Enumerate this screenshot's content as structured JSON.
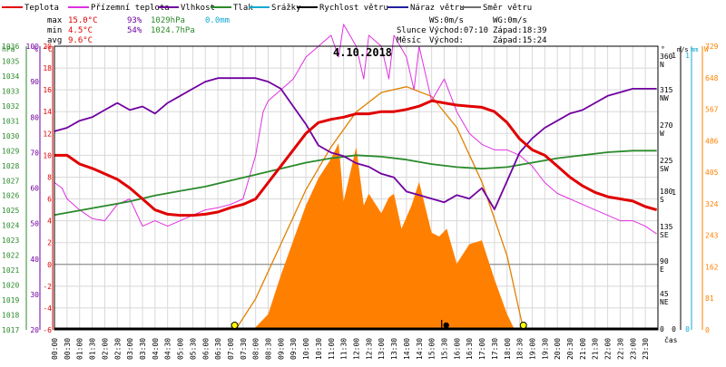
{
  "legend": [
    {
      "label": "Teplota",
      "color": "#e00000"
    },
    {
      "label": "Přízemní teplota",
      "color": "#e030e0"
    },
    {
      "label": "Vlhkost",
      "color": "#7000a0"
    },
    {
      "label": "Tlak",
      "color": "#2a8a2a"
    },
    {
      "label": "Srážky",
      "color": "#10a8d0"
    },
    {
      "label": "Rychlost větru",
      "color": "#000000"
    },
    {
      "label": "Náraz větru",
      "color": "#2020a0"
    },
    {
      "label": "Směr větru",
      "color": "#707070"
    }
  ],
  "stats": {
    "max": {
      "label": "max",
      "temp": "15.0°C",
      "hum": "93%",
      "press": "1029hPa",
      "rain": "0.0mm"
    },
    "min": {
      "label": "min",
      "temp": "4.5°C",
      "hum": "54%",
      "press": "1024.7hPa"
    },
    "avg": {
      "label": "avg",
      "temp": "9.6°C"
    }
  },
  "wind_info": {
    "ws": "WS:0m/s",
    "wg": "WG:0m/s"
  },
  "sun": {
    "label": "Slunce",
    "rise_label": "Východ:",
    "rise": "07:10",
    "set_label": "Západ:",
    "set": "18:39"
  },
  "moon": {
    "label": "Měsíc",
    "rise_label": "Východ:",
    "rise": "",
    "set_label": "Západ:",
    "set": "15:24"
  },
  "date_title": "4.10.2018",
  "x_axis_label": "čas",
  "axis_headers": {
    "hpa": "hPa",
    "pct": "%",
    "degc": "°C",
    "deg": "°",
    "ms": "m/s",
    "mm": "mm",
    "w": "W"
  },
  "colors": {
    "temp": "#e00000",
    "ground": "#e030e0",
    "humidity": "#7000a0",
    "pressure": "#2a8a2a",
    "rain": "#10a8d0",
    "gust": "#2020a0",
    "radiation": "#ff8000",
    "radiation_curve": "#e08000",
    "grid": "#d8d8d8",
    "zero_line": "#808080",
    "marker": "#ffff00"
  },
  "chart_data": {
    "type": "line",
    "title": "4.10.2018",
    "x_ticks": [
      "00:00",
      "00:30",
      "01:00",
      "01:30",
      "02:00",
      "02:30",
      "03:00",
      "03:30",
      "04:00",
      "04:30",
      "05:00",
      "05:30",
      "06:00",
      "06:30",
      "07:00",
      "07:30",
      "08:00",
      "08:30",
      "09:00",
      "09:30",
      "10:00",
      "10:30",
      "11:00",
      "11:30",
      "12:00",
      "12:30",
      "13:00",
      "13:30",
      "14:00",
      "14:30",
      "15:00",
      "15:30",
      "16:00",
      "16:30",
      "17:00",
      "17:30",
      "18:00",
      "18:30",
      "19:00",
      "19:30",
      "20:00",
      "20:30",
      "21:00",
      "21:30",
      "22:00",
      "22:30",
      "23:00",
      "23:30"
    ],
    "axes": {
      "pressure_hpa": {
        "min": 1017,
        "max": 1036,
        "ticks": [
          "1036",
          "1035",
          "1034",
          "1033",
          "1032",
          "1031",
          "1030",
          "1029",
          "1028",
          "1027",
          "1026",
          "1025",
          "1024",
          "1023",
          "1022",
          "1021",
          "1020",
          "1019",
          "1018",
          "1017"
        ]
      },
      "humidity_pct": {
        "min": 20,
        "max": 100,
        "ticks": [
          "100",
          "90",
          "80",
          "70",
          "60",
          "50",
          "40",
          "30",
          "20"
        ]
      },
      "temperature_c": {
        "min": -6,
        "max": 20,
        "ticks": [
          "20",
          "18",
          "16",
          "14",
          "12",
          "10",
          "8",
          "6",
          "4",
          "2",
          "0",
          "-2",
          "-4",
          "-6"
        ]
      },
      "wind_direction": {
        "ticks": [
          "360",
          "N",
          "315",
          "NW",
          "270",
          "W",
          "225",
          "SW",
          "180",
          "S",
          "135",
          "SE",
          "90",
          "E",
          "45",
          "NE",
          "0"
        ]
      },
      "wind_speed_ms": {
        "ticks": [
          "1",
          "1",
          "0"
        ]
      },
      "rain_mm": {
        "ticks": [
          "1",
          "0"
        ]
      },
      "radiation_w": {
        "min": 0,
        "max": 729,
        "ticks": [
          "729",
          "648",
          "567",
          "486",
          "405",
          "324",
          "243",
          "162",
          "81",
          "0"
        ]
      }
    },
    "series": [
      {
        "name": "Teplota",
        "unit": "°C",
        "points": [
          [
            0,
            10
          ],
          [
            0.5,
            10
          ],
          [
            1,
            9.2
          ],
          [
            1.5,
            8.8
          ],
          [
            2,
            8.3
          ],
          [
            2.5,
            7.8
          ],
          [
            3,
            7
          ],
          [
            3.5,
            6
          ],
          [
            4,
            5
          ],
          [
            4.5,
            4.6
          ],
          [
            5,
            4.5
          ],
          [
            5.5,
            4.5
          ],
          [
            6,
            4.6
          ],
          [
            6.5,
            4.8
          ],
          [
            7,
            5.2
          ],
          [
            7.5,
            5.5
          ],
          [
            8,
            6
          ],
          [
            8.5,
            7.5
          ],
          [
            9,
            9
          ],
          [
            9.5,
            10.5
          ],
          [
            10,
            12
          ],
          [
            10.5,
            13
          ],
          [
            11,
            13.3
          ],
          [
            11.5,
            13.5
          ],
          [
            12,
            13.8
          ],
          [
            12.5,
            13.8
          ],
          [
            13,
            14
          ],
          [
            13.5,
            14
          ],
          [
            14,
            14.2
          ],
          [
            14.5,
            14.5
          ],
          [
            15,
            15
          ],
          [
            15.5,
            14.8
          ],
          [
            16,
            14.6
          ],
          [
            16.5,
            14.5
          ],
          [
            17,
            14.4
          ],
          [
            17.5,
            14
          ],
          [
            18,
            13
          ],
          [
            18.5,
            11.5
          ],
          [
            19,
            10.5
          ],
          [
            19.5,
            10
          ],
          [
            20,
            9
          ],
          [
            20.5,
            8
          ],
          [
            21,
            7.2
          ],
          [
            21.5,
            6.6
          ],
          [
            22,
            6.2
          ],
          [
            22.5,
            6
          ],
          [
            23,
            5.8
          ],
          [
            23.5,
            5.3
          ],
          [
            23.95,
            5
          ]
        ]
      },
      {
        "name": "Přízemní teplota",
        "unit": "°C",
        "points": [
          [
            0,
            7.5
          ],
          [
            0.3,
            7
          ],
          [
            0.5,
            6
          ],
          [
            1,
            5
          ],
          [
            1.5,
            4.2
          ],
          [
            2,
            4
          ],
          [
            2.5,
            5.5
          ],
          [
            3,
            6
          ],
          [
            3.5,
            3.5
          ],
          [
            4,
            4
          ],
          [
            4.5,
            3.5
          ],
          [
            5,
            4
          ],
          [
            5.5,
            4.5
          ],
          [
            6,
            5
          ],
          [
            6.5,
            5.2
          ],
          [
            7,
            5.5
          ],
          [
            7.5,
            6
          ],
          [
            8,
            10
          ],
          [
            8.3,
            14
          ],
          [
            8.5,
            15
          ],
          [
            9,
            16
          ],
          [
            9.5,
            17
          ],
          [
            10,
            19
          ],
          [
            10.5,
            20
          ],
          [
            11,
            21
          ],
          [
            11.3,
            19
          ],
          [
            11.5,
            22
          ],
          [
            12,
            20
          ],
          [
            12.3,
            17
          ],
          [
            12.5,
            21
          ],
          [
            13,
            20
          ],
          [
            13.3,
            17
          ],
          [
            13.5,
            21
          ],
          [
            14,
            19
          ],
          [
            14.3,
            16
          ],
          [
            14.5,
            20
          ],
          [
            15,
            15
          ],
          [
            15.5,
            17
          ],
          [
            16,
            14
          ],
          [
            16.5,
            12
          ],
          [
            17,
            11
          ],
          [
            17.5,
            10.5
          ],
          [
            18,
            10.5
          ],
          [
            18.5,
            10
          ],
          [
            19,
            9
          ],
          [
            19.5,
            7.5
          ],
          [
            20,
            6.5
          ],
          [
            20.5,
            6
          ],
          [
            21,
            5.5
          ],
          [
            21.5,
            5
          ],
          [
            22,
            4.5
          ],
          [
            22.5,
            4
          ],
          [
            23,
            4
          ],
          [
            23.5,
            3.5
          ],
          [
            23.95,
            2.8
          ]
        ]
      },
      {
        "name": "Vlhkost",
        "unit": "%",
        "points": [
          [
            0,
            76
          ],
          [
            0.5,
            77
          ],
          [
            1,
            79
          ],
          [
            1.5,
            80
          ],
          [
            2,
            82
          ],
          [
            2.5,
            84
          ],
          [
            3,
            82
          ],
          [
            3.5,
            83
          ],
          [
            4,
            81
          ],
          [
            4.5,
            84
          ],
          [
            5,
            86
          ],
          [
            5.5,
            88
          ],
          [
            6,
            90
          ],
          [
            6.5,
            91
          ],
          [
            7,
            91
          ],
          [
            7.5,
            91
          ],
          [
            8,
            91
          ],
          [
            8.5,
            90
          ],
          [
            9,
            88
          ],
          [
            9.5,
            83
          ],
          [
            10,
            78
          ],
          [
            10.5,
            72
          ],
          [
            11,
            70
          ],
          [
            11.5,
            69
          ],
          [
            12,
            67
          ],
          [
            12.5,
            66
          ],
          [
            13,
            64
          ],
          [
            13.5,
            63
          ],
          [
            14,
            59
          ],
          [
            14.5,
            58
          ],
          [
            15,
            57
          ],
          [
            15.5,
            56
          ],
          [
            16,
            58
          ],
          [
            16.5,
            57
          ],
          [
            17,
            60
          ],
          [
            17.5,
            54
          ],
          [
            18,
            62
          ],
          [
            18.5,
            70
          ],
          [
            19,
            74
          ],
          [
            19.5,
            77
          ],
          [
            20,
            79
          ],
          [
            20.5,
            81
          ],
          [
            21,
            82
          ],
          [
            21.5,
            84
          ],
          [
            22,
            86
          ],
          [
            22.5,
            87
          ],
          [
            23,
            88
          ],
          [
            23.5,
            88
          ],
          [
            23.95,
            88
          ]
        ]
      },
      {
        "name": "Tlak",
        "unit": "hPa",
        "points": [
          [
            0,
            1024.7
          ],
          [
            1,
            1025
          ],
          [
            2,
            1025.3
          ],
          [
            3,
            1025.6
          ],
          [
            4,
            1026
          ],
          [
            5,
            1026.3
          ],
          [
            6,
            1026.6
          ],
          [
            7,
            1027
          ],
          [
            8,
            1027.4
          ],
          [
            9,
            1027.8
          ],
          [
            10,
            1028.2
          ],
          [
            11,
            1028.5
          ],
          [
            12,
            1028.7
          ],
          [
            13,
            1028.6
          ],
          [
            14,
            1028.4
          ],
          [
            15,
            1028.1
          ],
          [
            16,
            1027.9
          ],
          [
            17,
            1027.8
          ],
          [
            18,
            1027.9
          ],
          [
            19,
            1028.2
          ],
          [
            20,
            1028.5
          ],
          [
            21,
            1028.7
          ],
          [
            22,
            1028.9
          ],
          [
            23,
            1029
          ],
          [
            23.95,
            1029
          ]
        ]
      },
      {
        "name": "Srážky",
        "unit": "mm",
        "points": [
          [
            0,
            0
          ],
          [
            23.95,
            0
          ]
        ]
      }
    ],
    "solar_radiation": {
      "name": "Sluneční záření",
      "unit": "W",
      "points": [
        [
          7.9,
          0
        ],
        [
          8.5,
          40
        ],
        [
          9,
          140
        ],
        [
          9.5,
          230
        ],
        [
          10,
          320
        ],
        [
          10.5,
          390
        ],
        [
          11,
          440
        ],
        [
          11.3,
          480
        ],
        [
          11.5,
          330
        ],
        [
          12,
          470
        ],
        [
          12.3,
          320
        ],
        [
          12.5,
          350
        ],
        [
          13,
          300
        ],
        [
          13.3,
          340
        ],
        [
          13.5,
          350
        ],
        [
          13.8,
          260
        ],
        [
          14.2,
          320
        ],
        [
          14.5,
          380
        ],
        [
          15,
          250
        ],
        [
          15.3,
          240
        ],
        [
          15.6,
          260
        ],
        [
          16,
          170
        ],
        [
          16.5,
          220
        ],
        [
          17,
          230
        ],
        [
          17.5,
          130
        ],
        [
          18,
          40
        ],
        [
          18.3,
          0
        ]
      ]
    },
    "solar_curve": {
      "name": "Teoretické záření",
      "unit": "W",
      "points": [
        [
          7.2,
          0
        ],
        [
          8,
          80
        ],
        [
          9,
          220
        ],
        [
          10,
          360
        ],
        [
          11,
          470
        ],
        [
          12,
          560
        ],
        [
          13,
          610
        ],
        [
          14,
          625
        ],
        [
          15,
          600
        ],
        [
          16,
          520
        ],
        [
          17,
          380
        ],
        [
          18,
          190
        ],
        [
          18.65,
          0
        ]
      ]
    },
    "markers": {
      "sunrise": "07:10",
      "sunset": "18:39",
      "moonset": "15:24"
    },
    "grid": true
  }
}
